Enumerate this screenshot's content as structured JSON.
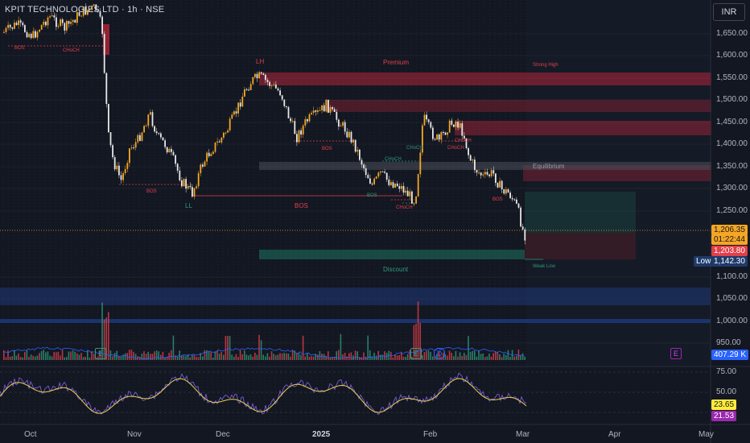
{
  "symbol_title": "KPIT TECHNOLOGIES LTD · 1h · NSE",
  "currency": "INR",
  "price_axis": [
    "1,650.00",
    "1,600.00",
    "1,550.00",
    "1,500.00",
    "1,450.00",
    "1,400.00",
    "1,350.00",
    "1,300.00",
    "1,250.00",
    "1,100.00",
    "1,050.00",
    "1,000.00",
    "950.00"
  ],
  "rsi_axis": [
    "75.00",
    "50.00"
  ],
  "time_axis": [
    "Oct",
    "Nov",
    "Dec",
    "2025",
    "Feb",
    "Mar",
    "Apr",
    "May"
  ],
  "labels": {
    "last_price": "1,206.35",
    "countdown": "01:22:44",
    "prev_price": "1,203.80",
    "low_tag": "Low",
    "low_price": "1,142.30",
    "volume": "407.29 K",
    "rsi_value1": "23.65",
    "rsi_value2": "21.53"
  },
  "zones": {
    "premium": "Premium",
    "equilibrium": "Equilibrium",
    "discount": "Discount",
    "strong_high": "Strong High",
    "weak_low": "Weak Low",
    "lh": "LH",
    "ll": "LL",
    "bos": "BOS",
    "choch": "CHoCH"
  },
  "events": [
    "E",
    "E",
    "D",
    "E"
  ],
  "colors": {
    "background": "#131722",
    "up": "#f5a623",
    "down": "#e8e8e8",
    "red_zone": "#b2263a",
    "green_zone": "#1e6b5a",
    "blue_zone": "#1e3f8a",
    "rsi_line": "#e8d44d",
    "rsi_purple": "#7b5cd6",
    "label_red": "#e0404a",
    "label_orange": "#f5a623",
    "label_yellow": "#ffeb3b",
    "label_purple": "#9c27b0",
    "label_blue": "#2962ff",
    "label_low": "#1e3a6b"
  }
}
